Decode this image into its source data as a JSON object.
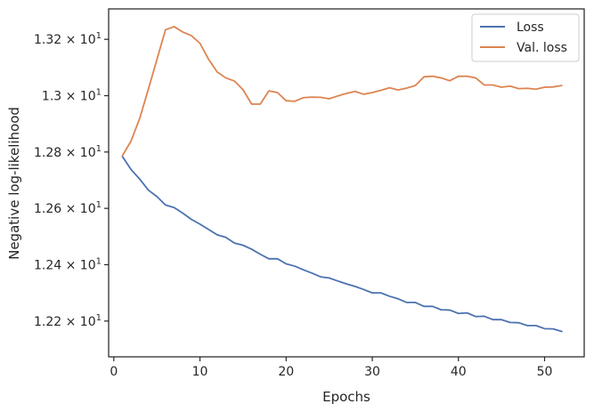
{
  "chart_data": {
    "type": "line",
    "xlabel": "Epochs",
    "ylabel": "Negative log-likelihood",
    "xlim": [
      -0.6,
      54.6
    ],
    "ylim": [
      12.073,
      13.308
    ],
    "x_ticks": [
      0,
      10,
      20,
      30,
      40,
      50
    ],
    "y_ticks": [
      {
        "value": 12.2,
        "mantissa": "1.22",
        "base": "10",
        "exp": "1"
      },
      {
        "value": 12.4,
        "mantissa": "1.24",
        "base": "10",
        "exp": "1"
      },
      {
        "value": 12.6,
        "mantissa": "1.26",
        "base": "10",
        "exp": "1"
      },
      {
        "value": 12.8,
        "mantissa": "1.28",
        "base": "10",
        "exp": "1"
      },
      {
        "value": 13.0,
        "mantissa": "1.3",
        "base": "10",
        "exp": "1"
      },
      {
        "value": 13.2,
        "mantissa": "1.32",
        "base": "10",
        "exp": "1"
      }
    ],
    "x": [
      1,
      2,
      3,
      4,
      5,
      6,
      7,
      8,
      9,
      10,
      11,
      12,
      13,
      14,
      15,
      16,
      17,
      18,
      19,
      20,
      21,
      22,
      23,
      24,
      25,
      26,
      27,
      28,
      29,
      30,
      31,
      32,
      33,
      34,
      35,
      36,
      37,
      38,
      39,
      40,
      41,
      42,
      43,
      44,
      45,
      46,
      47,
      48,
      49,
      50,
      51,
      52
    ],
    "series": [
      {
        "name": "Loss",
        "color": "#4c72b0",
        "values": [
          12.784,
          12.738,
          12.704,
          12.665,
          12.642,
          12.612,
          12.603,
          12.583,
          12.561,
          12.544,
          12.525,
          12.506,
          12.497,
          12.477,
          12.469,
          12.455,
          12.437,
          12.421,
          12.421,
          12.403,
          12.395,
          12.382,
          12.37,
          12.357,
          12.353,
          12.342,
          12.332,
          12.323,
          12.312,
          12.3,
          12.3,
          12.288,
          12.279,
          12.266,
          12.266,
          12.252,
          12.252,
          12.24,
          12.239,
          12.227,
          12.229,
          12.216,
          12.217,
          12.205,
          12.205,
          12.195,
          12.194,
          12.184,
          12.184,
          12.173,
          12.172,
          12.163
        ]
      },
      {
        "name": "Val. loss",
        "color": "#dd8452",
        "values": [
          12.787,
          12.839,
          12.919,
          13.022,
          13.128,
          13.234,
          13.245,
          13.226,
          13.213,
          13.186,
          13.129,
          13.084,
          13.063,
          13.052,
          13.021,
          12.97,
          12.97,
          13.017,
          13.011,
          12.982,
          12.98,
          12.993,
          12.995,
          12.994,
          12.989,
          12.999,
          13.008,
          13.015,
          13.005,
          13.011,
          13.019,
          13.028,
          13.02,
          13.027,
          13.036,
          13.067,
          13.069,
          13.063,
          13.053,
          13.069,
          13.069,
          13.063,
          13.038,
          13.038,
          13.03,
          13.034,
          13.025,
          13.026,
          13.023,
          13.03,
          13.031,
          13.036
        ]
      }
    ],
    "legend": {
      "position": "top-right"
    },
    "grid": false
  }
}
